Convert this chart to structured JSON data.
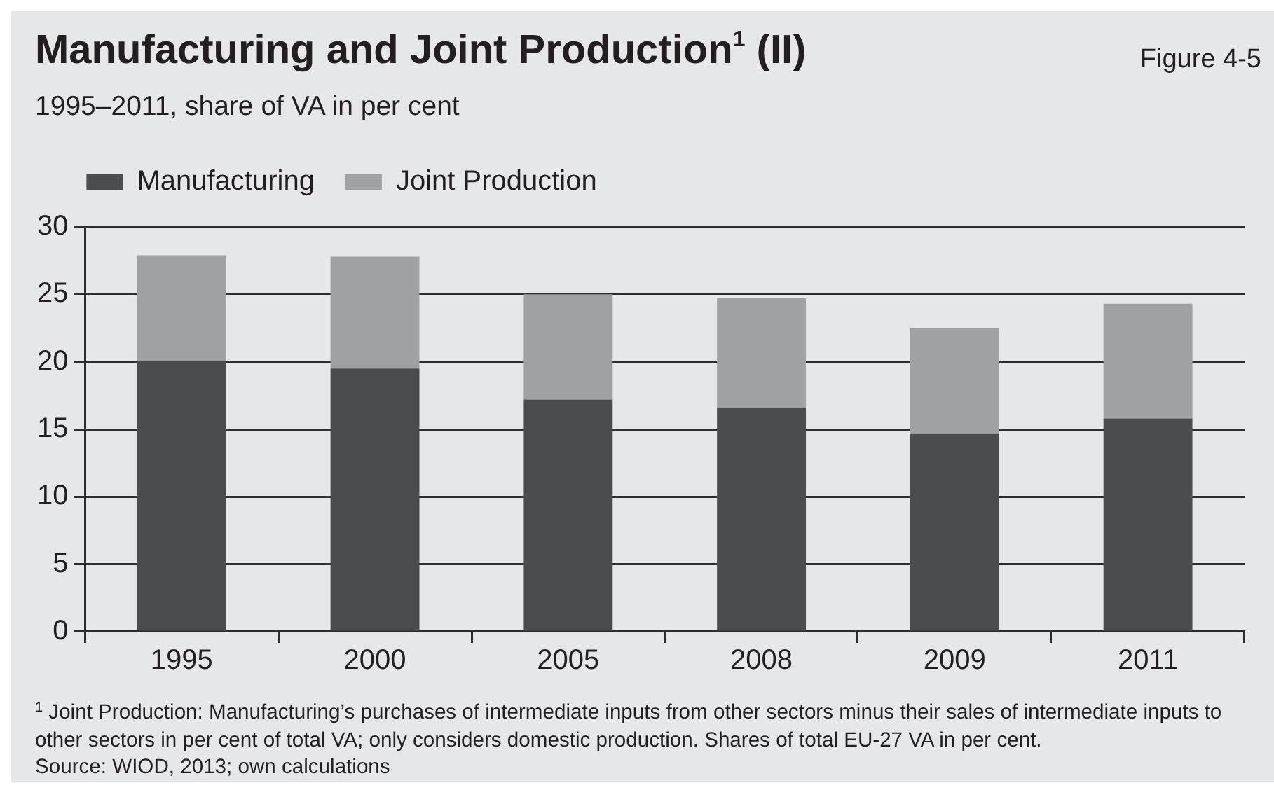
{
  "chart_data": {
    "type": "bar",
    "title": "Manufacturing and Joint Production$^{1}$ (II)",
    "subtitle": "1995–2011, share of VA in per cent",
    "annotations": [
      "Figure 4-5",
      "$^{1}$ Joint Production: Manufacturing’s purchases of intermediate inputs from other sectors minus their sales of intermediate inputs to other sectors in per cent of total VA; only considers domestic production. Shares of total EU-27 VA in per cent.",
      "Source: WIOD, 2013; own calculations"
    ],
    "categories": [
      "1995",
      "2000",
      "2005",
      "2008",
      "2009",
      "2011"
    ],
    "series": [
      {
        "name": "Manufacturing",
        "color": "#4b4c4e",
        "values": [
          20.1,
          19.5,
          17.2,
          16.6,
          14.7,
          15.8
        ]
      },
      {
        "name": "Joint Production",
        "color": "#a0a1a4",
        "values": [
          7.8,
          8.3,
          7.8,
          8.1,
          7.8,
          8.5
        ]
      }
    ],
    "stacked": true,
    "ylim": [
      0,
      30
    ],
    "yticks": [
      0,
      5,
      10,
      15,
      20,
      25,
      30
    ],
    "grid": "y",
    "legend": "top left"
  }
}
